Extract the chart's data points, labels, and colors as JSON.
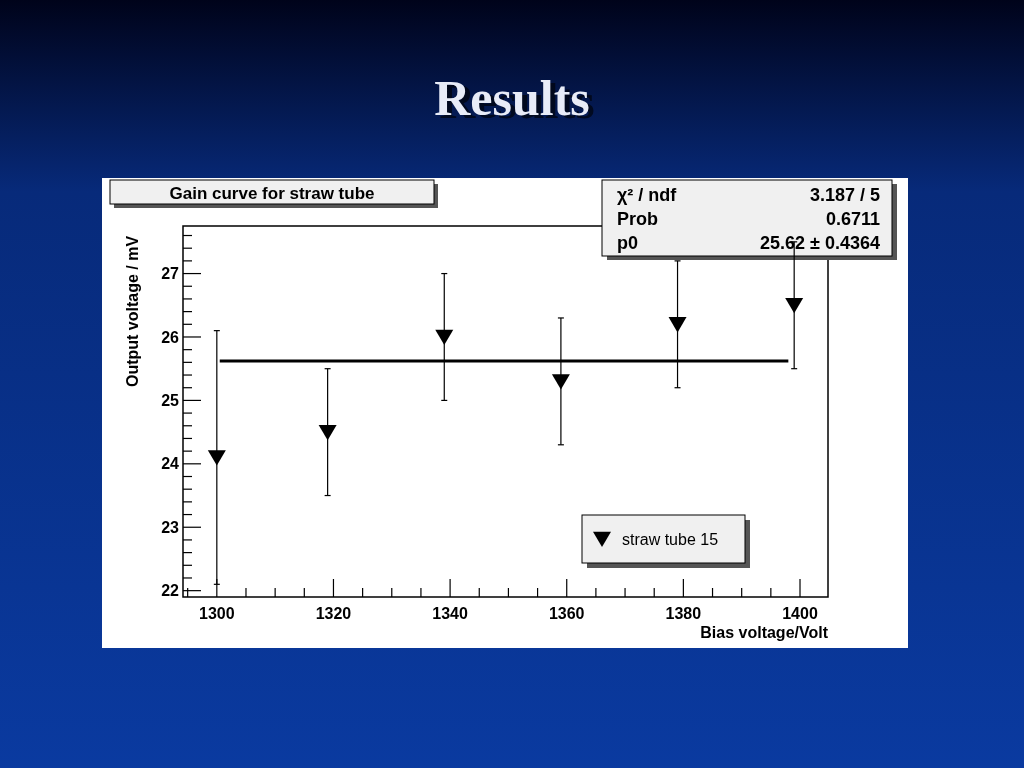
{
  "chart_data": {
    "type": "scatter",
    "title": "Results",
    "subtitle": "Gain curve for straw tube",
    "xlabel": "Bias voltage/Volt",
    "ylabel": "Output voltage / mV",
    "annotations": [
      "χ² / ndf",
      "3.187 / 5",
      "Prob",
      "0.6711",
      "p0",
      "25.62 ± 0.4364"
    ],
    "xlim": [
      1294.2,
      1404.8
    ],
    "ylim": [
      21.9,
      27.75
    ],
    "xticks": [
      {
        "value": 1295,
        "label": null
      },
      1300,
      {
        "value": 1305,
        "label": null
      },
      {
        "value": 1310,
        "label": null
      },
      {
        "value": 1315,
        "label": null
      },
      1320,
      {
        "value": 1325,
        "label": null
      },
      {
        "value": 1330,
        "label": null
      },
      {
        "value": 1335,
        "label": null
      },
      1340,
      {
        "value": 1345,
        "label": null
      },
      {
        "value": 1350,
        "label": null
      },
      {
        "value": 1355,
        "label": null
      },
      1360,
      {
        "value": 1365,
        "label": null
      },
      {
        "value": 1370,
        "label": null
      },
      {
        "value": 1375,
        "label": null
      },
      1380,
      {
        "value": 1385,
        "label": null
      },
      {
        "value": 1390,
        "label": null
      },
      {
        "value": 1395,
        "label": null
      },
      1400
    ],
    "yticks": [
      22,
      {
        "value": 22.2,
        "label": null
      },
      {
        "value": 22.4,
        "label": null
      },
      {
        "value": 22.6,
        "label": null
      },
      {
        "value": 22.8,
        "label": null
      },
      23,
      {
        "value": 23.2,
        "label": null
      },
      {
        "value": 23.4,
        "label": null
      },
      {
        "value": 23.6,
        "label": null
      },
      {
        "value": 23.8,
        "label": null
      },
      24,
      {
        "value": 24.2,
        "label": null
      },
      {
        "value": 24.4,
        "label": null
      },
      {
        "value": 24.6,
        "label": null
      },
      {
        "value": 24.8,
        "label": null
      },
      25,
      {
        "value": 25.2,
        "label": null
      },
      {
        "value": 25.4,
        "label": null
      },
      {
        "value": 25.6,
        "label": null
      },
      {
        "value": 25.8,
        "label": null
      },
      26,
      {
        "value": 26.2,
        "label": null
      },
      {
        "value": 26.4,
        "label": null
      },
      {
        "value": 26.6,
        "label": null
      },
      {
        "value": 26.8,
        "label": null
      },
      27,
      {
        "value": 27.2,
        "label": null
      },
      {
        "value": 27.4,
        "label": null
      },
      {
        "value": 27.6,
        "label": null
      }
    ],
    "grid": false,
    "legend": "bottom right",
    "x": [
      1300,
      1319,
      1339,
      1359,
      1379,
      1399
    ],
    "series": [
      {
        "name": "straw tube 15",
        "marker": "triangle",
        "color": "#000000",
        "values": [
          24.1,
          24.5,
          26.0,
          25.3,
          26.2,
          26.5
        ],
        "errors": [
          2,
          1,
          1,
          1,
          1,
          1
        ]
      },
      {
        "type": "line",
        "marker": "none",
        "color": "#000000",
        "x": [
          1300.5,
          1398
        ],
        "values": [
          25.62,
          25.62
        ]
      }
    ]
  }
}
